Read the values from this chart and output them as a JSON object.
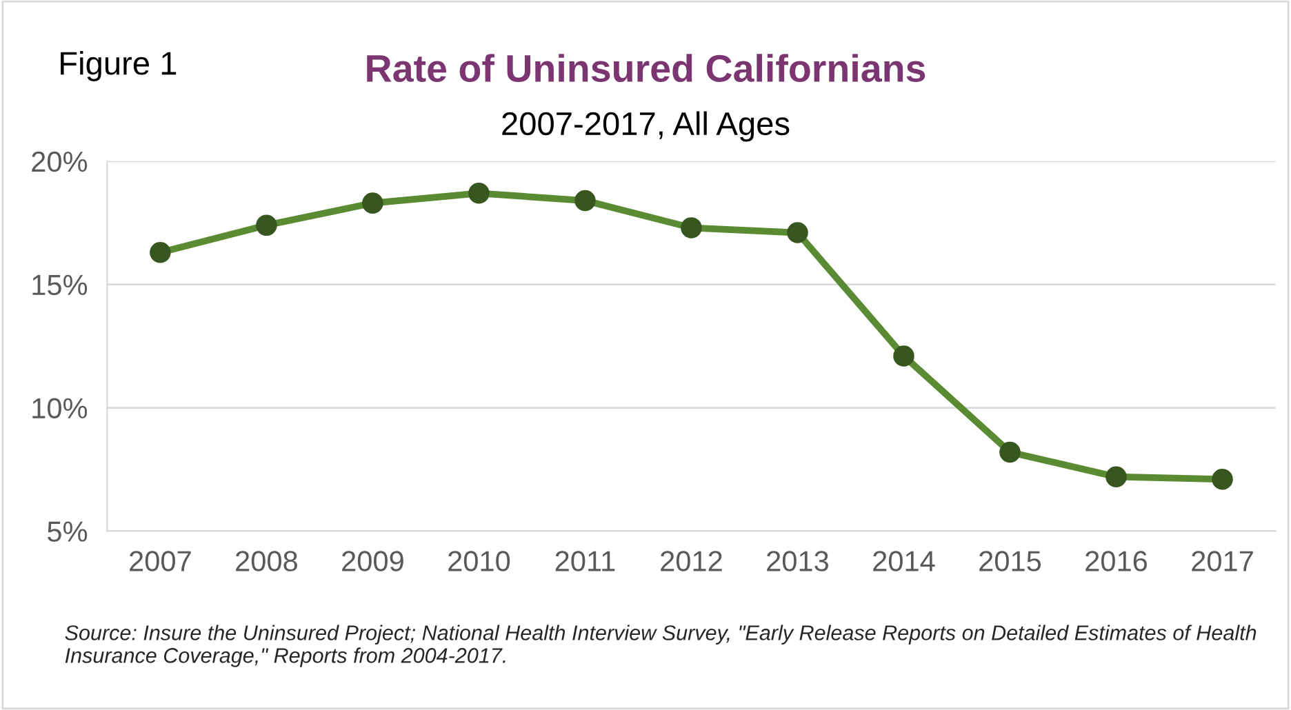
{
  "chart_data": {
    "type": "line",
    "title": "Rate of Uninsured Californians",
    "subtitle": "2007-2017, All Ages",
    "categories": [
      "2007",
      "2008",
      "2009",
      "2010",
      "2011",
      "2012",
      "2013",
      "2014",
      "2015",
      "2016",
      "2017"
    ],
    "series": [
      {
        "color": "#5a8a32",
        "values": [
          16.3,
          17.4,
          18.3,
          18.7,
          18.4,
          17.3,
          17.1,
          12.1,
          8.2,
          7.2,
          7.1
        ]
      }
    ],
    "ylim": [
      5,
      20
    ],
    "yticks": [
      {
        "value": 5,
        "label": "5%"
      },
      {
        "value": 10,
        "label": "10%"
      },
      {
        "value": 15,
        "label": "15%"
      },
      {
        "value": 20,
        "label": "20%"
      }
    ],
    "grid": "y",
    "marker": "circle",
    "line_style": "solid",
    "annotations": [
      "Figure 1",
      "Source: Insure the Uninsured Project; National Health Interview Survey, \"Early Release Reports on Detailed Estimates of Health Insurance Coverage,\" Reports from 2004-2017."
    ]
  }
}
